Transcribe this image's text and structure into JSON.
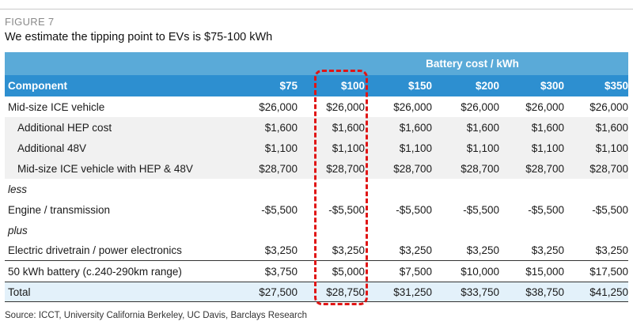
{
  "figure": {
    "label": "FIGURE 7",
    "title": "We estimate the tipping point to EVs is $75-100 kWh",
    "source": "Source: ICCT, University California Berkeley, UC Davis, Barclays Research"
  },
  "table": {
    "group_header": "Battery cost / kWh",
    "component_header": "Component",
    "columns": [
      "$75",
      "$100",
      "$150",
      "$200",
      "$300",
      "$350"
    ],
    "rows": [
      {
        "label": "Mid-size ICE vehicle",
        "values": [
          "$26,000",
          "$26,000",
          "$26,000",
          "$26,000",
          "$26,000",
          "$26,000"
        ]
      },
      {
        "label": "Additional HEP cost",
        "values": [
          "$1,600",
          "$1,600",
          "$1,600",
          "$1,600",
          "$1,600",
          "$1,600"
        ]
      },
      {
        "label": "Additional 48V",
        "values": [
          "$1,100",
          "$1,100",
          "$1,100",
          "$1,100",
          "$1,100",
          "$1,100"
        ]
      },
      {
        "label": "Mid-size ICE vehicle with HEP & 48V",
        "values": [
          "$28,700",
          "$28,700",
          "$28,700",
          "$28,700",
          "$28,700",
          "$28,700"
        ]
      },
      {
        "label": "less",
        "values": []
      },
      {
        "label": "Engine / transmission",
        "values": [
          "-$5,500",
          "-$5,500",
          "-$5,500",
          "-$5,500",
          "-$5,500",
          "-$5,500"
        ]
      },
      {
        "label": "plus",
        "values": []
      },
      {
        "label": "Electric drivetrain / power electronics",
        "values": [
          "$3,250",
          "$3,250",
          "$3,250",
          "$3,250",
          "$3,250",
          "$3,250"
        ]
      },
      {
        "label": "50 kWh battery (c.240-290km range)",
        "values": [
          "$3,750",
          "$5,000",
          "$7,500",
          "$10,000",
          "$15,000",
          "$17,500"
        ]
      },
      {
        "label": "Total",
        "values": [
          "$27,500",
          "$28,750",
          "$31,250",
          "$33,750",
          "$38,750",
          "$41,250"
        ]
      }
    ]
  },
  "colors": {
    "header_light": "#5aaad8",
    "header_dark": "#2d8fd0",
    "highlight": "#e01515"
  }
}
